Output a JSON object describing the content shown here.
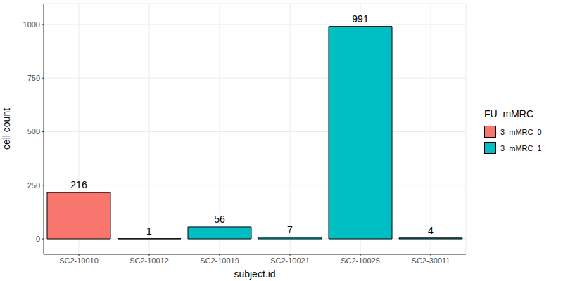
{
  "chart_data": {
    "type": "bar",
    "x_label": "subject.id",
    "y_label": "cell count",
    "legend_title": "FU_mMRC",
    "categories": [
      "SC2-10010",
      "SC2-10012",
      "SC2-10019",
      "SC2-10021",
      "SC2-10025",
      "SC2-30011"
    ],
    "series": [
      {
        "name": "3_mMRC_0",
        "color": "#F8766D",
        "values": [
          216,
          null,
          null,
          null,
          null,
          null
        ]
      },
      {
        "name": "3_mMRC_1",
        "color": "#00BFC4",
        "values": [
          null,
          1,
          56,
          7,
          991,
          4
        ]
      }
    ],
    "stacked": true,
    "data_labels": true,
    "grid": true,
    "legend": "right",
    "ylim": [
      -72,
      1098
    ],
    "yticks": [
      0,
      250,
      500,
      750,
      1000
    ]
  }
}
